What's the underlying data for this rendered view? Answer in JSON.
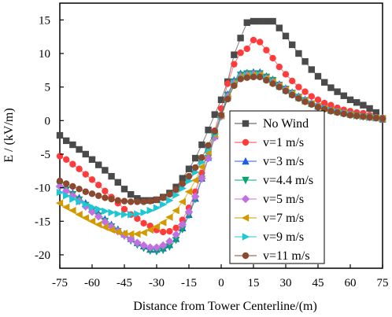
{
  "chart_data": {
    "type": "line",
    "xlabel": "Distance from Tower Centerline/(m)",
    "ylabel": "E / (kV/m)",
    "xlim": [
      -75,
      75
    ],
    "ylim": [
      -22,
      17.5
    ],
    "xticks": [
      -75,
      -60,
      -45,
      -30,
      -15,
      0,
      15,
      30,
      45,
      60,
      75
    ],
    "yticks": [
      15,
      10,
      5,
      0,
      -5,
      -10,
      -15,
      -20
    ],
    "legend_position": "center-right",
    "x": [
      -75,
      -72,
      -69,
      -66,
      -63,
      -60,
      -57,
      -54,
      -51,
      -48,
      -45,
      -42,
      -39,
      -36,
      -33,
      -30,
      -27,
      -24,
      -21,
      -18,
      -15,
      -12,
      -9,
      -6,
      -3,
      0,
      3,
      6,
      9,
      12,
      15,
      18,
      21,
      24,
      27,
      30,
      33,
      36,
      39,
      42,
      45,
      48,
      51,
      54,
      57,
      60,
      63,
      66,
      69,
      72,
      75
    ],
    "series": [
      {
        "name": "No Wind",
        "color": "#4a4a4a",
        "marker": "square",
        "values": [
          -2.2,
          -3.0,
          -3.6,
          -4.3,
          -5.0,
          -5.8,
          -6.6,
          -7.4,
          -8.3,
          -9.2,
          -10.2,
          -11.0,
          -11.6,
          -11.9,
          -11.9,
          -11.8,
          -11.4,
          -10.8,
          -9.9,
          -8.6,
          -7.2,
          -5.6,
          -3.6,
          -1.4,
          0.9,
          3.1,
          5.8,
          9.8,
          12.3,
          14.6,
          14.8,
          14.8,
          14.8,
          14.8,
          13.8,
          12.6,
          11.3,
          10.0,
          8.8,
          7.6,
          6.6,
          5.7,
          4.9,
          4.3,
          3.7,
          3.1,
          2.7,
          2.3,
          1.8,
          1.2,
          0.2
        ]
      },
      {
        "name": "v=1 m/s",
        "color": "#ff3c3c",
        "marker": "circle",
        "values": [
          -5.3,
          -5.8,
          -6.5,
          -7.2,
          -8.0,
          -8.8,
          -9.6,
          -10.5,
          -11.4,
          -12.3,
          -13.2,
          -14.0,
          -14.6,
          -15.3,
          -15.7,
          -16.3,
          -16.6,
          -16.5,
          -16.0,
          -14.8,
          -13.0,
          -10.6,
          -7.8,
          -4.6,
          -1.5,
          1.8,
          5.5,
          8.4,
          10.1,
          10.7,
          12.0,
          11.7,
          10.5,
          9.3,
          8.0,
          6.9,
          5.9,
          5.0,
          4.3,
          3.6,
          3.1,
          2.6,
          2.3,
          1.9,
          1.6,
          1.4,
          1.2,
          1.1,
          0.8,
          0.5,
          0.4
        ]
      },
      {
        "name": "v=3 m/s",
        "color": "#1f5fe0",
        "marker": "triangle-up",
        "values": [
          -9.5,
          -10.1,
          -10.8,
          -11.5,
          -12.3,
          -13.1,
          -13.9,
          -14.7,
          -15.5,
          -16.2,
          -16.9,
          -17.6,
          -18.2,
          -18.7,
          -19.2,
          -19.2,
          -19.0,
          -18.5,
          -17.6,
          -16.0,
          -14.0,
          -11.6,
          -8.6,
          -5.5,
          -2.3,
          0.8,
          3.9,
          6.0,
          7.0,
          7.1,
          7.2,
          7.2,
          6.6,
          6.1,
          5.4,
          4.8,
          4.2,
          3.6,
          3.1,
          2.6,
          2.2,
          1.9,
          1.6,
          1.4,
          1.2,
          1.0,
          0.8,
          0.7,
          0.5,
          0.4,
          0.3
        ]
      },
      {
        "name": "v=4.4 m/s",
        "color": "#0aa070",
        "marker": "triangle-down",
        "values": [
          -9.6,
          -10.3,
          -11.0,
          -11.8,
          -12.6,
          -13.4,
          -14.2,
          -15.0,
          -15.8,
          -16.5,
          -17.2,
          -17.9,
          -18.5,
          -19.0,
          -19.4,
          -19.5,
          -19.3,
          -18.8,
          -17.8,
          -16.2,
          -14.1,
          -11.7,
          -8.7,
          -5.6,
          -2.4,
          0.7,
          3.8,
          5.8,
          6.8,
          7.0,
          7.0,
          7.0,
          6.5,
          6.0,
          5.3,
          4.7,
          4.1,
          3.5,
          3.0,
          2.5,
          2.1,
          1.8,
          1.5,
          1.3,
          1.1,
          0.9,
          0.7,
          0.6,
          0.5,
          0.4,
          0.3
        ]
      },
      {
        "name": "v=5 m/s",
        "color": "#c070e0",
        "marker": "diamond",
        "values": [
          -9.8,
          -10.5,
          -11.2,
          -12.0,
          -12.8,
          -13.6,
          -14.3,
          -15.1,
          -15.8,
          -16.5,
          -17.1,
          -17.7,
          -18.2,
          -18.6,
          -18.9,
          -18.9,
          -18.6,
          -18.0,
          -17.0,
          -15.5,
          -13.6,
          -11.3,
          -8.6,
          -5.6,
          -2.5,
          0.6,
          3.6,
          5.6,
          6.6,
          6.8,
          6.9,
          6.8,
          6.3,
          5.8,
          5.2,
          4.6,
          4.0,
          3.4,
          2.9,
          2.5,
          2.1,
          1.8,
          1.5,
          1.3,
          1.1,
          0.9,
          0.7,
          0.6,
          0.5,
          0.4,
          0.3
        ]
      },
      {
        "name": "v=7 m/s",
        "color": "#d29a00",
        "marker": "triangle-left",
        "values": [
          -12.3,
          -12.9,
          -13.4,
          -14.0,
          -14.5,
          -15.0,
          -15.5,
          -15.9,
          -16.3,
          -16.6,
          -16.8,
          -16.9,
          -16.9,
          -16.7,
          -16.3,
          -15.8,
          -15.2,
          -14.4,
          -13.4,
          -12.1,
          -10.6,
          -8.9,
          -6.9,
          -4.7,
          -2.1,
          0.7,
          3.4,
          5.5,
          6.5,
          6.7,
          6.8,
          6.8,
          6.3,
          5.8,
          5.2,
          4.6,
          4.0,
          3.4,
          2.9,
          2.5,
          2.1,
          1.8,
          1.5,
          1.3,
          1.1,
          0.9,
          0.7,
          0.6,
          0.5,
          0.4,
          0.3
        ]
      },
      {
        "name": "v=9 m/s",
        "color": "#1ec8d2",
        "marker": "triangle-right",
        "values": [
          -10.7,
          -11.2,
          -11.7,
          -12.1,
          -12.5,
          -12.9,
          -13.2,
          -13.5,
          -13.7,
          -13.9,
          -14.0,
          -14.0,
          -13.9,
          -13.7,
          -13.4,
          -13.0,
          -12.5,
          -11.9,
          -11.1,
          -10.1,
          -9.0,
          -7.7,
          -6.2,
          -4.3,
          -2.0,
          0.6,
          3.3,
          5.4,
          6.4,
          6.6,
          6.7,
          6.7,
          6.2,
          5.7,
          5.1,
          4.5,
          3.9,
          3.4,
          2.9,
          2.5,
          2.1,
          1.8,
          1.5,
          1.3,
          1.1,
          0.9,
          0.7,
          0.6,
          0.5,
          0.4,
          0.3
        ]
      },
      {
        "name": "v=11 m/s",
        "color": "#8b4a30",
        "marker": "circle",
        "values": [
          -9.0,
          -9.4,
          -9.8,
          -10.2,
          -10.6,
          -10.9,
          -11.2,
          -11.5,
          -11.7,
          -11.9,
          -12.0,
          -12.1,
          -12.1,
          -12.1,
          -12.0,
          -11.8,
          -11.5,
          -11.0,
          -10.3,
          -9.4,
          -8.3,
          -7.0,
          -5.5,
          -3.7,
          -1.6,
          0.8,
          3.2,
          5.2,
          6.2,
          6.4,
          6.5,
          6.5,
          6.0,
          5.5,
          5.0,
          4.4,
          3.8,
          3.3,
          2.8,
          2.4,
          2.0,
          1.7,
          1.4,
          1.2,
          1.0,
          0.8,
          0.7,
          0.6,
          0.5,
          0.4,
          0.3
        ]
      }
    ]
  }
}
